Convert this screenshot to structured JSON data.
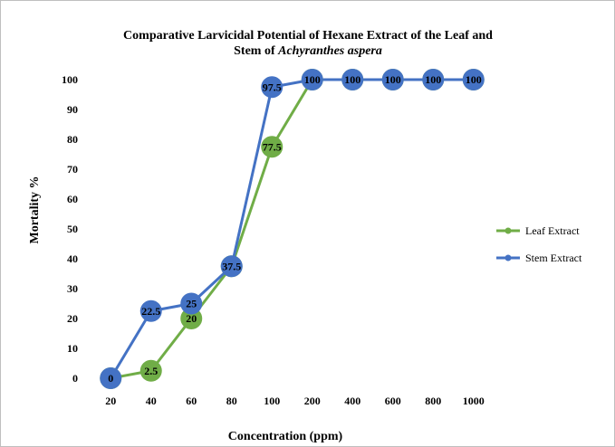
{
  "chart_data": {
    "type": "line",
    "title_line1": "Comparative Larvicidal Potential of Hexane Extract of the Leaf and",
    "title_line2_prefix": "Stem of ",
    "title_line2_italic": "Achyranthes aspera",
    "xlabel": "Concentration  (ppm)",
    "ylabel": "Mortality %",
    "categories": [
      "20",
      "40",
      "60",
      "80",
      "100",
      "200",
      "400",
      "600",
      "800",
      "1000"
    ],
    "ylim": [
      0,
      100
    ],
    "yticks": [
      "0",
      "10",
      "20",
      "30",
      "40",
      "50",
      "60",
      "70",
      "80",
      "90",
      "100"
    ],
    "grid": false,
    "legend_position": "right",
    "series": [
      {
        "name": "Leaf Extract",
        "color": "#70ad47",
        "values": [
          0,
          2.5,
          20,
          37.5,
          77.5,
          100,
          100,
          100,
          100,
          100
        ],
        "labels": [
          "0",
          "2.5",
          "20",
          "37.5",
          "77.5",
          "100",
          "100",
          "100",
          "100",
          "100"
        ]
      },
      {
        "name": "Stem Extract",
        "color": "#4472c4",
        "values": [
          0,
          22.5,
          25,
          37.5,
          97.5,
          100,
          100,
          100,
          100,
          100
        ],
        "labels": [
          "0",
          "22.5",
          "25",
          "37.5",
          "97.5",
          "100",
          "100",
          "100",
          "100",
          "100"
        ]
      }
    ]
  }
}
